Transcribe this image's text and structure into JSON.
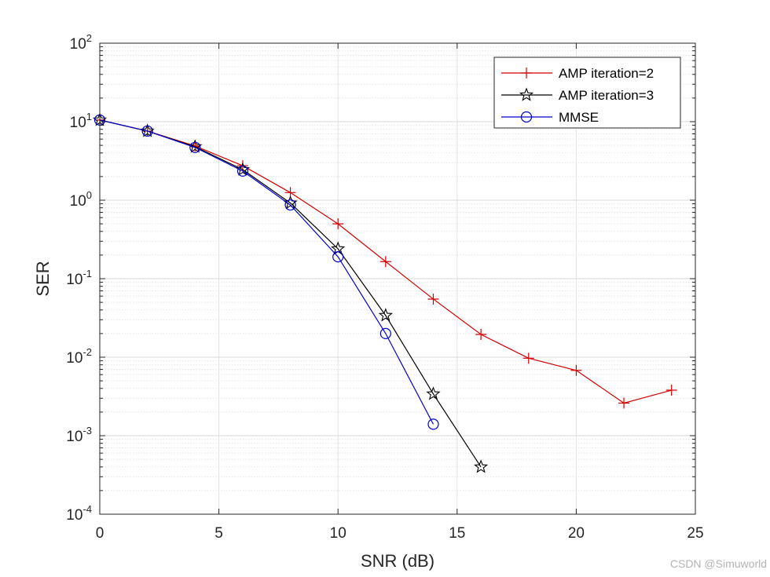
{
  "chart_data": {
    "type": "line",
    "yscale": "log",
    "xlabel": "SNR (dB)",
    "ylabel": "SER",
    "xlim": [
      0,
      25
    ],
    "ylim": [
      0.0001,
      100
    ],
    "xticks": [
      0,
      5,
      10,
      15,
      20,
      25
    ],
    "yticks": [
      {
        "base": "10",
        "exp": "-4",
        "value": 0.0001
      },
      {
        "base": "10",
        "exp": "-3",
        "value": 0.001
      },
      {
        "base": "10",
        "exp": "-2",
        "value": 0.01
      },
      {
        "base": "10",
        "exp": "-1",
        "value": 0.1
      },
      {
        "base": "10",
        "exp": "0",
        "value": 1
      },
      {
        "base": "10",
        "exp": "1",
        "value": 10
      },
      {
        "base": "10",
        "exp": "2",
        "value": 100
      }
    ],
    "grid": true,
    "legend_location": "top-right",
    "series": [
      {
        "name": "AMP iteration=2",
        "color": "#d40000",
        "marker": "plus",
        "x": [
          0,
          2,
          4,
          6,
          8,
          10,
          12,
          14,
          16,
          18,
          20,
          22,
          24
        ],
        "y": [
          10.5,
          7.6,
          4.9,
          2.75,
          1.25,
          0.5,
          0.165,
          0.055,
          0.0195,
          0.0097,
          0.0068,
          0.0026,
          0.0038
        ]
      },
      {
        "name": "AMP iteration=3",
        "color": "#000000",
        "marker": "star",
        "x": [
          0,
          2,
          4,
          6,
          8,
          10,
          12,
          14,
          16
        ],
        "y": [
          10.5,
          7.6,
          4.8,
          2.45,
          0.92,
          0.24,
          0.034,
          0.0034,
          0.0004
        ]
      },
      {
        "name": "MMSE",
        "color": "#0000cc",
        "marker": "circle",
        "x": [
          0,
          2,
          4,
          6,
          8,
          10,
          12,
          14
        ],
        "y": [
          10.5,
          7.6,
          4.7,
          2.35,
          0.87,
          0.19,
          0.02,
          0.0014
        ]
      }
    ]
  },
  "watermark": "CSDN @Simuworld"
}
